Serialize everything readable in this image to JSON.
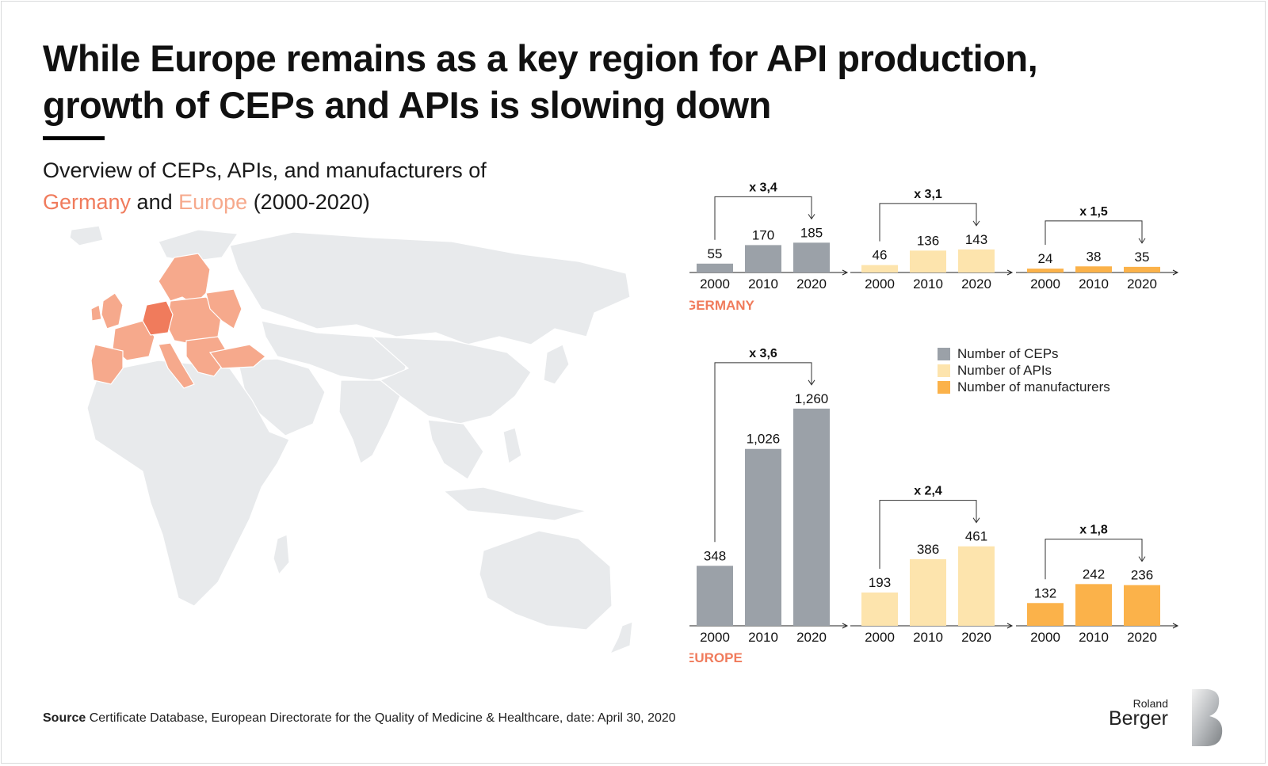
{
  "title": "While Europe remains as a key region for API production, growth of CEPs and APIs is slowing down",
  "subtitle": {
    "line1": "Overview of CEPs, APIs, and manufacturers of",
    "germany": "Germany",
    "and": " and ",
    "europe": "Europe",
    "period": " (2000-2020)"
  },
  "source": {
    "label": "Source",
    "text": " Certificate Database, European Directorate for the Quality of Medicine & Healthcare, date: April 30, 2020"
  },
  "logo": {
    "line1": "Roland",
    "line2": "Berger"
  },
  "colors": {
    "ceps": "#9ba1a8",
    "apis": "#fde4ad",
    "manufacturers": "#fbb24a",
    "germany": "#f07b5c",
    "europe": "#f6a98c",
    "land": "#e8eaec"
  },
  "legend": [
    {
      "label": "Number of CEPs",
      "color": "#9ba1a8"
    },
    {
      "label": "Number of APIs",
      "color": "#fde4ad"
    },
    {
      "label": "Number of manufacturers",
      "color": "#fbb24a"
    }
  ],
  "chart_data": [
    {
      "type": "bar",
      "region": "GERMANY",
      "categories": [
        "2000",
        "2010",
        "2020"
      ],
      "series": [
        {
          "name": "Number of CEPs",
          "values": [
            55,
            170,
            185
          ],
          "growth": "x 3,4"
        },
        {
          "name": "Number of APIs",
          "values": [
            46,
            136,
            143
          ],
          "growth": "x 3,1"
        },
        {
          "name": "Number of manufacturers",
          "values": [
            24,
            38,
            35
          ],
          "growth": "x 1,5"
        }
      ]
    },
    {
      "type": "bar",
      "region": "EUROPE",
      "categories": [
        "2000",
        "2010",
        "2020"
      ],
      "series": [
        {
          "name": "Number of CEPs",
          "values": [
            348,
            1026,
            1260
          ],
          "value_labels": [
            "348",
            "1,026",
            "1,260"
          ],
          "growth": "x 3,6"
        },
        {
          "name": "Number of APIs",
          "values": [
            193,
            386,
            461
          ],
          "growth": "x 2,4"
        },
        {
          "name": "Number of manufacturers",
          "values": [
            132,
            242,
            236
          ],
          "growth": "x 1,8"
        }
      ]
    }
  ]
}
